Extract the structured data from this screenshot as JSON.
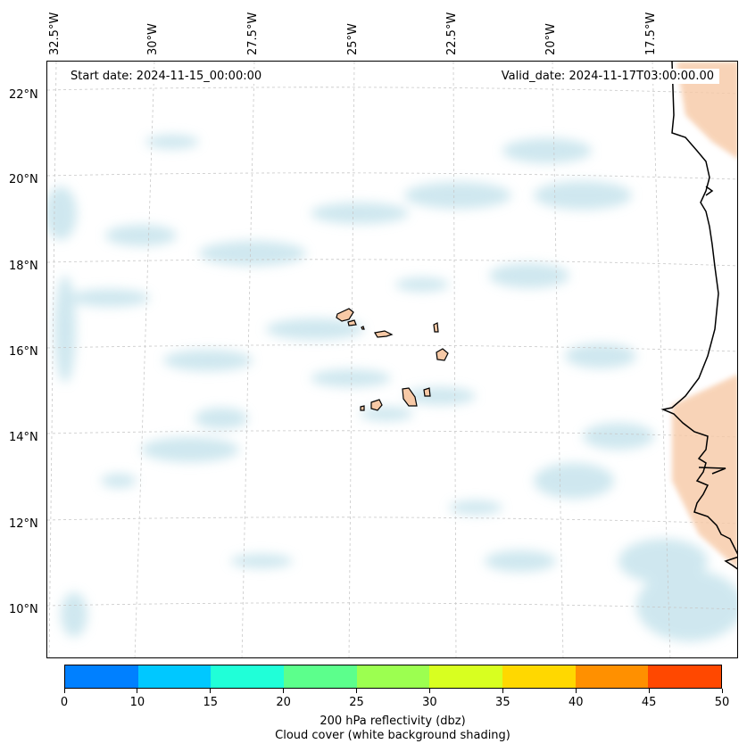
{
  "map": {
    "start_date": "Start date: 2024-11-15_00:00:00",
    "valid_date": "Valid_date: 2024-11-17T03:00:00.00",
    "lon_labels": [
      "32.5°W",
      "30°W",
      "27.5°W",
      "25°W",
      "22.5°W",
      "20°W",
      "17.5°W"
    ],
    "lat_labels": [
      "22°N",
      "20°N",
      "18°N",
      "16°N",
      "14°N",
      "12°N",
      "10°N"
    ],
    "land_color": "#f7c9a6",
    "cloud_color": "#bfe0ea",
    "coastline_color": "#000000",
    "gridlines": true
  },
  "colorbar": {
    "label_line1": "200 hPa reflectivity (dbz)",
    "label_line2": "Cloud cover (white background shading)",
    "ticks": [
      "0",
      "10",
      "15",
      "20",
      "25",
      "30",
      "35",
      "40",
      "45",
      "50"
    ],
    "colors": [
      "#0080ff",
      "#00c8ff",
      "#20ffd8",
      "#5cff8c",
      "#9cff50",
      "#d8ff20",
      "#ffd800",
      "#ff9000",
      "#ff4800"
    ]
  }
}
